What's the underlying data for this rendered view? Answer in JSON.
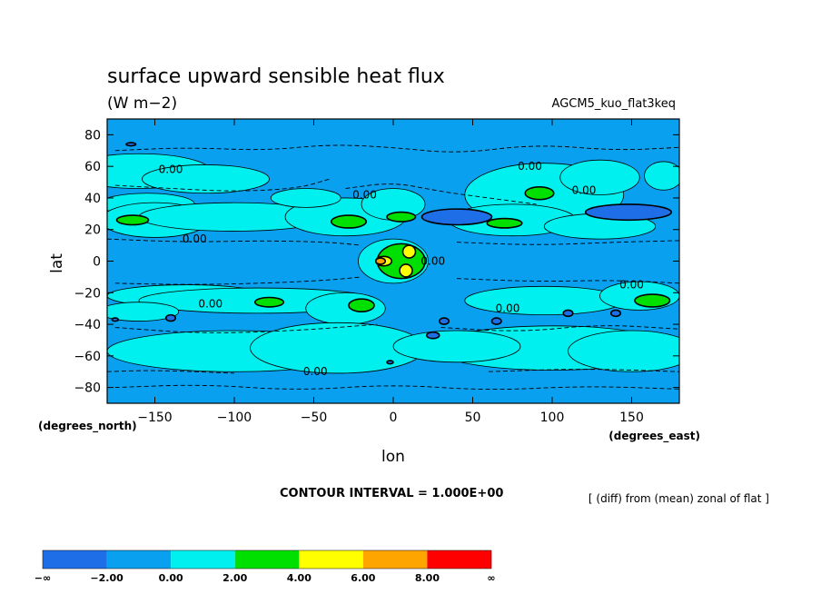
{
  "chart_data": {
    "type": "heatmap",
    "title": "surface upward sensible heat flux",
    "units": "(W m−2)",
    "experiment": "AGCM5_kuo_flat3keq",
    "xlabel": "lon",
    "ylabel": "lat",
    "x_units": "(degrees_east)",
    "y_units": "(degrees_north)",
    "xlim": [
      -180,
      180
    ],
    "ylim": [
      -90,
      90
    ],
    "x_ticks": [
      -150,
      -100,
      -50,
      0,
      50,
      100,
      150
    ],
    "x_tick_labels": [
      "−150",
      "−100",
      "−50",
      "0",
      "50",
      "100",
      "150"
    ],
    "y_ticks": [
      80,
      60,
      40,
      20,
      0,
      -20,
      -40,
      -60,
      -80
    ],
    "y_tick_labels": [
      "80",
      "60",
      "40",
      "20",
      "0",
      "−20",
      "−40",
      "−60",
      "−80"
    ],
    "contour_interval_text": "CONTOUR INTERVAL = 1.000E+00",
    "operation_text": "[ (diff) from (mean) zonal of flat ]",
    "contour_labels": [
      {
        "text": "0.00",
        "lon": -140,
        "lat": 58
      },
      {
        "text": "0.00",
        "lon": -125,
        "lat": 14
      },
      {
        "text": "0.00",
        "lon": -18,
        "lat": 42
      },
      {
        "text": "0.00",
        "lon": 86,
        "lat": 60
      },
      {
        "text": "0.00",
        "lon": 120,
        "lat": 45
      },
      {
        "text": "0.00",
        "lon": 25,
        "lat": 0
      },
      {
        "text": "0.00",
        "lon": -115,
        "lat": -27
      },
      {
        "text": "0.00",
        "lon": 72,
        "lat": -30
      },
      {
        "text": "0.00",
        "lon": 150,
        "lat": -15
      },
      {
        "text": "0.00",
        "lon": -49,
        "lat": -70
      }
    ],
    "colorbar": {
      "levels": [
        "−∞",
        "−2.00",
        "0.00",
        "2.00",
        "4.00",
        "6.00",
        "8.00",
        "∞"
      ],
      "colors": [
        "#1e6ee8",
        "#0aa0f0",
        "#00f0f0",
        "#00e000",
        "#ffff00",
        "#ffa500",
        "#ff0000"
      ]
    },
    "fields": [
      {
        "level": 0,
        "color": "#00f0f0",
        "shapes": [
          {
            "lon": -160,
            "lat": 57,
            "rlon": 45,
            "rlat": 11
          },
          {
            "lon": -118,
            "lat": 52,
            "rlon": 40,
            "rlat": 9
          },
          {
            "lon": -155,
            "lat": 36,
            "rlon": 30,
            "rlat": 7
          },
          {
            "lon": -150,
            "lat": 26,
            "rlon": 34,
            "rlat": 11
          },
          {
            "lon": -100,
            "lat": 28,
            "rlon": 60,
            "rlat": 9
          },
          {
            "lon": -30,
            "lat": 28,
            "rlon": 38,
            "rlat": 12
          },
          {
            "lon": 0,
            "lat": 36,
            "rlon": 20,
            "rlat": 10
          },
          {
            "lon": -55,
            "lat": 40,
            "rlon": 22,
            "rlat": 6
          },
          {
            "lon": 95,
            "lat": 42,
            "rlon": 50,
            "rlat": 20
          },
          {
            "lon": 130,
            "lat": 53,
            "rlon": 25,
            "rlat": 11
          },
          {
            "lon": 170,
            "lat": 54,
            "rlon": 12,
            "rlat": 9
          },
          {
            "lon": 75,
            "lat": 26,
            "rlon": 40,
            "rlat": 10
          },
          {
            "lon": 130,
            "lat": 22,
            "rlon": 35,
            "rlat": 8
          },
          {
            "lon": -130,
            "lat": -22,
            "rlon": 50,
            "rlat": 7
          },
          {
            "lon": -85,
            "lat": -25,
            "rlon": 75,
            "rlat": 8
          },
          {
            "lon": -30,
            "lat": -30,
            "rlon": 25,
            "rlat": 10
          },
          {
            "lon": 95,
            "lat": -25,
            "rlon": 50,
            "rlat": 9
          },
          {
            "lon": 155,
            "lat": -22,
            "rlon": 25,
            "rlat": 9
          },
          {
            "lon": -160,
            "lat": -32,
            "rlon": 25,
            "rlat": 6
          },
          {
            "lon": -100,
            "lat": -57,
            "rlon": 80,
            "rlat": 13
          },
          {
            "lon": -35,
            "lat": -55,
            "rlon": 55,
            "rlat": 16
          },
          {
            "lon": 100,
            "lat": -55,
            "rlon": 75,
            "rlat": 14
          },
          {
            "lon": 150,
            "lat": -57,
            "rlon": 40,
            "rlat": 13
          },
          {
            "lon": 40,
            "lat": -54,
            "rlon": 40,
            "rlat": 10
          },
          {
            "lon": 0,
            "lat": 0,
            "rlon": 22,
            "rlat": 14
          }
        ]
      },
      {
        "level": 1,
        "color": "#00e000",
        "shapes": [
          {
            "lon": -164,
            "lat": 26,
            "rlon": 10,
            "rlat": 3
          },
          {
            "lon": -28,
            "lat": 25,
            "rlon": 11,
            "rlat": 4
          },
          {
            "lon": 5,
            "lat": 28,
            "rlon": 9,
            "rlat": 3
          },
          {
            "lon": 92,
            "lat": 43,
            "rlon": 9,
            "rlat": 4
          },
          {
            "lon": 70,
            "lat": 24,
            "rlon": 11,
            "rlat": 3
          },
          {
            "lon": -78,
            "lat": -26,
            "rlon": 9,
            "rlat": 3
          },
          {
            "lon": -20,
            "lat": -28,
            "rlon": 8,
            "rlat": 4
          },
          {
            "lon": 163,
            "lat": -25,
            "rlon": 11,
            "rlat": 4
          },
          {
            "lon": 5,
            "lat": 0,
            "rlon": 15,
            "rlat": 11
          }
        ]
      },
      {
        "level": 2,
        "color": "#ffff00",
        "shapes": [
          {
            "lon": 10,
            "lat": 6,
            "rlon": 4,
            "rlat": 4
          },
          {
            "lon": 8,
            "lat": -6,
            "rlon": 4,
            "rlat": 4
          },
          {
            "lon": -6,
            "lat": 0,
            "rlon": 5,
            "rlat": 3
          }
        ]
      },
      {
        "level": 3,
        "color": "#ffa500",
        "shapes": [
          {
            "lon": -8,
            "lat": 0,
            "rlon": 3,
            "rlat": 2
          }
        ]
      },
      {
        "level": -1,
        "color": "#1e6ee8",
        "shapes": [
          {
            "lon": 40,
            "lat": 28,
            "rlon": 22,
            "rlat": 5
          },
          {
            "lon": 148,
            "lat": 31,
            "rlon": 27,
            "rlat": 5
          },
          {
            "lon": -165,
            "lat": 74,
            "rlon": 3,
            "rlat": 1
          },
          {
            "lon": -140,
            "lat": -36,
            "rlon": 3,
            "rlat": 2
          },
          {
            "lon": 32,
            "lat": -38,
            "rlon": 3,
            "rlat": 2
          },
          {
            "lon": 25,
            "lat": -47,
            "rlon": 4,
            "rlat": 2
          },
          {
            "lon": 65,
            "lat": -38,
            "rlon": 3,
            "rlat": 2
          },
          {
            "lon": 110,
            "lat": -33,
            "rlon": 3,
            "rlat": 2
          },
          {
            "lon": 140,
            "lat": -33,
            "rlon": 3,
            "rlat": 2
          },
          {
            "lon": -2,
            "lat": -64,
            "rlon": 2,
            "rlat": 1
          },
          {
            "lon": -175,
            "lat": -37,
            "rlon": 2,
            "rlat": 1
          }
        ]
      }
    ],
    "dashed_contours": [
      {
        "points": [
          [
            -175,
            70
          ],
          [
            -130,
            72
          ],
          [
            -80,
            70
          ],
          [
            -40,
            74
          ],
          [
            0,
            72
          ],
          [
            40,
            68
          ],
          [
            90,
            74
          ],
          [
            140,
            70
          ],
          [
            180,
            72
          ]
        ]
      },
      {
        "points": [
          [
            -175,
            48
          ],
          [
            -140,
            46
          ],
          [
            -100,
            44
          ],
          [
            -60,
            46
          ],
          [
            -40,
            52
          ]
        ]
      },
      {
        "points": [
          [
            -30,
            46
          ],
          [
            0,
            50
          ],
          [
            30,
            44
          ],
          [
            60,
            40
          ],
          [
            90,
            36
          ]
        ]
      },
      {
        "points": [
          [
            -180,
            14
          ],
          [
            -130,
            12
          ],
          [
            -80,
            13
          ],
          [
            -40,
            12
          ],
          [
            -20,
            10
          ]
        ]
      },
      {
        "points": [
          [
            40,
            12
          ],
          [
            90,
            10
          ],
          [
            140,
            12
          ],
          [
            180,
            13
          ]
        ]
      },
      {
        "points": [
          [
            -175,
            -14
          ],
          [
            -130,
            -15
          ],
          [
            -80,
            -14
          ],
          [
            -40,
            -12
          ],
          [
            -20,
            -10
          ]
        ]
      },
      {
        "points": [
          [
            40,
            -11
          ],
          [
            90,
            -13
          ],
          [
            140,
            -12
          ],
          [
            180,
            -14
          ]
        ]
      },
      {
        "points": [
          [
            -175,
            -42
          ],
          [
            -120,
            -46
          ],
          [
            -60,
            -44
          ],
          [
            -10,
            -40
          ]
        ]
      },
      {
        "points": [
          [
            30,
            -42
          ],
          [
            80,
            -45
          ],
          [
            130,
            -40
          ],
          [
            180,
            -43
          ]
        ]
      },
      {
        "points": [
          [
            -175,
            -80
          ],
          [
            -120,
            -78
          ],
          [
            -60,
            -82
          ],
          [
            0,
            -78
          ],
          [
            60,
            -82
          ],
          [
            120,
            -79
          ],
          [
            180,
            -81
          ]
        ]
      },
      {
        "points": [
          [
            -180,
            -70
          ],
          [
            -150,
            -69
          ],
          [
            -100,
            -71
          ]
        ]
      },
      {
        "points": [
          [
            60,
            -70
          ],
          [
            120,
            -68
          ],
          [
            180,
            -70
          ]
        ]
      }
    ]
  }
}
